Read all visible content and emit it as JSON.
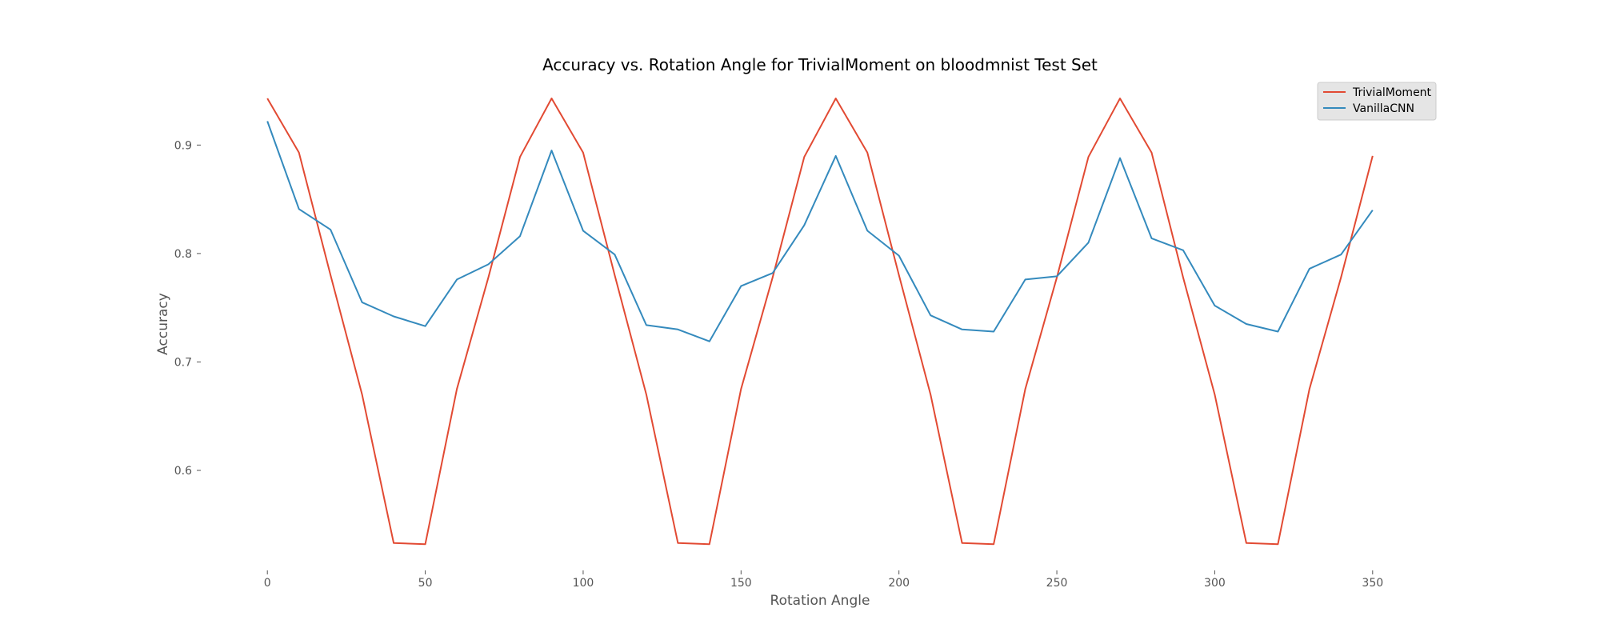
{
  "chart_data": {
    "type": "line",
    "title": "Accuracy vs. Rotation Angle for TrivialMoment on bloodmnist Test Set",
    "xlabel": "Rotation Angle",
    "ylabel": "Accuracy",
    "xlim": [
      -15,
      365
    ],
    "ylim": [
      0.51,
      0.96
    ],
    "xticks": [
      0,
      50,
      100,
      150,
      200,
      250,
      300,
      350
    ],
    "xtick_labels": [
      "0",
      "50",
      "100",
      "150",
      "200",
      "250",
      "300",
      "350"
    ],
    "yticks": [
      0.6,
      0.7,
      0.8,
      0.9
    ],
    "ytick_labels": [
      "0.6",
      "0.7",
      "0.8",
      "0.9"
    ],
    "grid": false,
    "legend_position": "top-right",
    "x": [
      0,
      10,
      20,
      30,
      40,
      50,
      60,
      70,
      80,
      90,
      100,
      110,
      120,
      130,
      140,
      150,
      160,
      170,
      180,
      190,
      200,
      210,
      220,
      230,
      240,
      250,
      260,
      270,
      280,
      290,
      300,
      310,
      320,
      330,
      340,
      350
    ],
    "series": [
      {
        "name": "TrivialMoment",
        "color": "#e24a33",
        "values": [
          0.943,
          0.893,
          0.78,
          0.67,
          0.533,
          0.532,
          0.675,
          0.778,
          0.889,
          0.943,
          0.893,
          0.78,
          0.67,
          0.533,
          0.532,
          0.675,
          0.778,
          0.889,
          0.943,
          0.893,
          0.78,
          0.67,
          0.533,
          0.532,
          0.675,
          0.778,
          0.889,
          0.943,
          0.893,
          0.778,
          0.67,
          0.533,
          0.532,
          0.675,
          0.778,
          0.89
        ]
      },
      {
        "name": "VanillaCNN",
        "color": "#348abd",
        "values": [
          0.922,
          0.841,
          0.822,
          0.755,
          0.742,
          0.733,
          0.776,
          0.79,
          0.816,
          0.895,
          0.821,
          0.799,
          0.734,
          0.73,
          0.719,
          0.77,
          0.782,
          0.826,
          0.89,
          0.821,
          0.798,
          0.743,
          0.73,
          0.728,
          0.776,
          0.779,
          0.81,
          0.888,
          0.814,
          0.803,
          0.752,
          0.735,
          0.728,
          0.786,
          0.799,
          0.84
        ]
      }
    ]
  }
}
